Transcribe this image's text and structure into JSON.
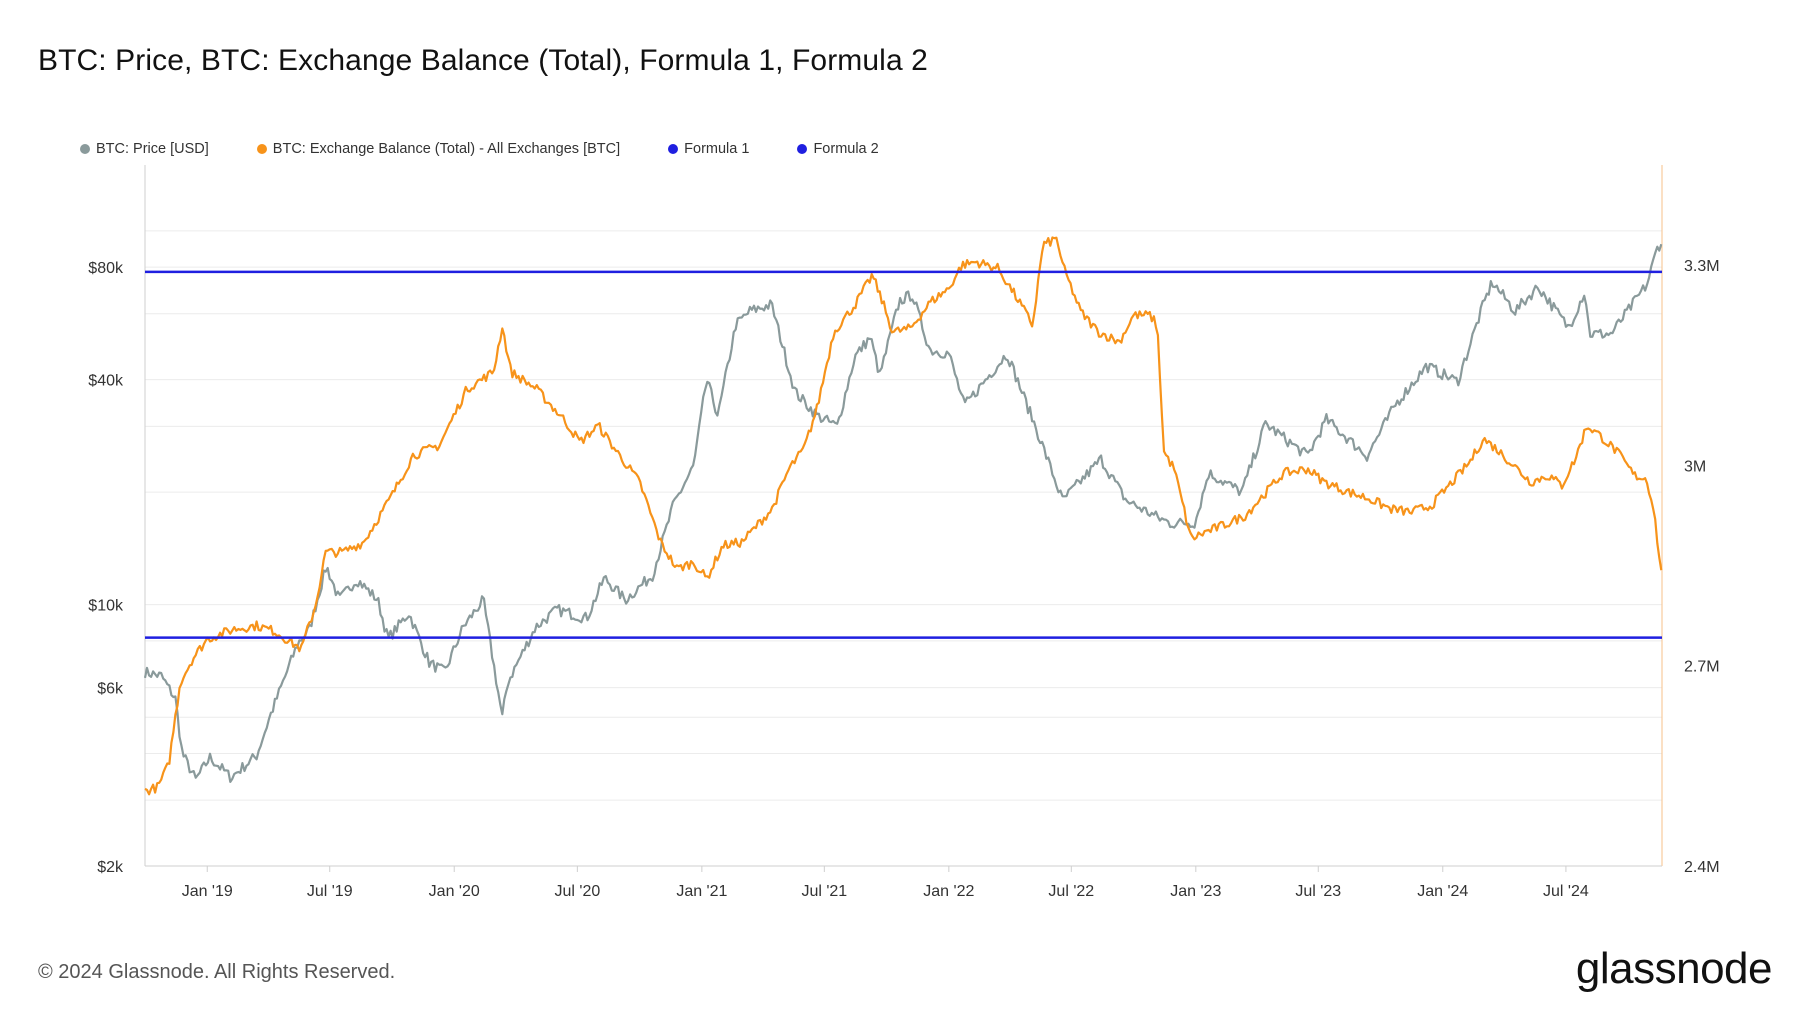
{
  "title": "BTC: Price, BTC: Exchange Balance (Total), Formula 1, Formula 2",
  "legend": [
    {
      "label": "BTC: Price [USD]",
      "color": "#8a9a9b"
    },
    {
      "label": "BTC: Exchange Balance (Total) - All Exchanges [BTC]",
      "color": "#f7931a"
    },
    {
      "label": "Formula 1",
      "color": "#1f1fe0"
    },
    {
      "label": "Formula 2",
      "color": "#1f1fe0"
    }
  ],
  "footer": "© 2024 Glassnode. All Rights Reserved.",
  "logo": "glassnode",
  "chart_data": {
    "type": "line",
    "title": "BTC: Price, BTC: Exchange Balance (Total), Formula 1, Formula 2",
    "x_range": [
      "2018-10-01",
      "2024-11-20"
    ],
    "x_ticks": [
      "Jan '19",
      "Jul '19",
      "Jan '20",
      "Jul '20",
      "Jan '21",
      "Jul '21",
      "Jan '22",
      "Jul '22",
      "Jan '23",
      "Jul '23",
      "Jan '24",
      "Jul '24"
    ],
    "y_left": {
      "scale": "log",
      "range": [
        2000,
        150000
      ],
      "ticks": [
        {
          "v": 2000,
          "label": "$2k"
        },
        {
          "v": 6000,
          "label": "$6k"
        },
        {
          "v": 10000,
          "label": "$10k"
        },
        {
          "v": 40000,
          "label": "$40k"
        },
        {
          "v": 80000,
          "label": "$80k"
        }
      ]
    },
    "y_right": {
      "scale": "linear",
      "range": [
        2400000,
        3450000
      ],
      "ticks": [
        {
          "v": 2400000,
          "label": "2.4M"
        },
        {
          "v": 2700000,
          "label": "2.7M"
        },
        {
          "v": 3000000,
          "label": "3M"
        },
        {
          "v": 3300000,
          "label": "3.3M"
        }
      ]
    },
    "grid": true,
    "legend_position": "top-left",
    "series": [
      {
        "name": "BTC: Price [USD]",
        "axis": "left",
        "color": "#8a9a9b",
        "points": [
          [
            "2018-10-01",
            6600
          ],
          [
            "2018-10-25",
            6450
          ],
          [
            "2018-11-15",
            5600
          ],
          [
            "2018-11-25",
            4000
          ],
          [
            "2018-12-15",
            3400
          ],
          [
            "2019-01-05",
            3900
          ],
          [
            "2019-02-05",
            3450
          ],
          [
            "2019-03-15",
            3950
          ],
          [
            "2019-04-05",
            5100
          ],
          [
            "2019-05-15",
            7900
          ],
          [
            "2019-06-01",
            8600
          ],
          [
            "2019-06-26",
            12700
          ],
          [
            "2019-07-15",
            10300
          ],
          [
            "2019-08-10",
            11700
          ],
          [
            "2019-09-10",
            10300
          ],
          [
            "2019-09-25",
            8100
          ],
          [
            "2019-10-26",
            9500
          ],
          [
            "2019-11-25",
            7000
          ],
          [
            "2019-12-18",
            6600
          ],
          [
            "2020-01-14",
            8700
          ],
          [
            "2020-02-13",
            10300
          ],
          [
            "2020-03-12",
            5000
          ],
          [
            "2020-03-20",
            6200
          ],
          [
            "2020-04-30",
            8700
          ],
          [
            "2020-06-01",
            9700
          ],
          [
            "2020-07-15",
            9200
          ],
          [
            "2020-08-10",
            11800
          ],
          [
            "2020-09-10",
            10300
          ],
          [
            "2020-10-20",
            12000
          ],
          [
            "2020-11-20",
            18500
          ],
          [
            "2020-12-20",
            23500
          ],
          [
            "2021-01-08",
            40000
          ],
          [
            "2021-01-25",
            32000
          ],
          [
            "2021-02-20",
            56000
          ],
          [
            "2021-03-13",
            61000
          ],
          [
            "2021-04-14",
            63500
          ],
          [
            "2021-05-19",
            37000
          ],
          [
            "2021-06-21",
            32000
          ],
          [
            "2021-07-20",
            30000
          ],
          [
            "2021-08-15",
            46000
          ],
          [
            "2021-09-07",
            52000
          ],
          [
            "2021-09-21",
            41000
          ],
          [
            "2021-10-20",
            65000
          ],
          [
            "2021-11-08",
            67500
          ],
          [
            "2021-12-04",
            48000
          ],
          [
            "2022-01-01",
            47000
          ],
          [
            "2022-01-24",
            34000
          ],
          [
            "2022-03-28",
            47000
          ],
          [
            "2022-05-12",
            29000
          ],
          [
            "2022-06-18",
            19000
          ],
          [
            "2022-08-14",
            24500
          ],
          [
            "2022-09-20",
            19000
          ],
          [
            "2022-11-09",
            17000
          ],
          [
            "2022-11-25",
            16500
          ],
          [
            "2022-12-31",
            16600
          ],
          [
            "2023-01-20",
            22500
          ],
          [
            "2023-03-10",
            20000
          ],
          [
            "2023-04-14",
            30500
          ],
          [
            "2023-06-15",
            25000
          ],
          [
            "2023-07-13",
            31300
          ],
          [
            "2023-09-11",
            25000
          ],
          [
            "2023-10-24",
            34500
          ],
          [
            "2023-12-08",
            43500
          ],
          [
            "2024-01-23",
            39500
          ],
          [
            "2024-02-28",
            62000
          ],
          [
            "2024-03-14",
            73000
          ],
          [
            "2024-04-17",
            61000
          ],
          [
            "2024-05-21",
            71000
          ],
          [
            "2024-07-05",
            55000
          ],
          [
            "2024-07-29",
            69000
          ],
          [
            "2024-08-05",
            53000
          ],
          [
            "2024-09-06",
            53000
          ],
          [
            "2024-10-29",
            72000
          ],
          [
            "2024-11-13",
            90000
          ],
          [
            "2024-11-20",
            94000
          ]
        ]
      },
      {
        "name": "BTC: Exchange Balance (Total) - All Exchanges [BTC]",
        "axis": "right",
        "color": "#f7931a",
        "points": [
          [
            "2018-10-01",
            2512000
          ],
          [
            "2018-10-20",
            2518000
          ],
          [
            "2018-11-05",
            2552000
          ],
          [
            "2018-11-22",
            2675000
          ],
          [
            "2018-12-10",
            2710000
          ],
          [
            "2019-01-01",
            2740000
          ],
          [
            "2019-02-10",
            2755000
          ],
          [
            "2019-03-15",
            2760000
          ],
          [
            "2019-04-10",
            2752000
          ],
          [
            "2019-05-20",
            2725000
          ],
          [
            "2019-06-10",
            2790000
          ],
          [
            "2019-06-25",
            2870000
          ],
          [
            "2019-07-20",
            2870000
          ],
          [
            "2019-08-20",
            2885000
          ],
          [
            "2019-10-01",
            2955000
          ],
          [
            "2019-11-01",
            3015000
          ],
          [
            "2019-12-10",
            3030000
          ],
          [
            "2020-01-20",
            3115000
          ],
          [
            "2020-02-28",
            3140000
          ],
          [
            "2020-03-12",
            3208000
          ],
          [
            "2020-03-25",
            3140000
          ],
          [
            "2020-05-01",
            3115000
          ],
          [
            "2020-06-10",
            3070000
          ],
          [
            "2020-07-05",
            3035000
          ],
          [
            "2020-08-01",
            3060000
          ],
          [
            "2020-08-25",
            3025000
          ],
          [
            "2020-10-01",
            2975000
          ],
          [
            "2020-11-01",
            2885000
          ],
          [
            "2020-11-25",
            2845000
          ],
          [
            "2020-12-20",
            2855000
          ],
          [
            "2021-01-08",
            2830000
          ],
          [
            "2021-02-01",
            2880000
          ],
          [
            "2021-03-01",
            2885000
          ],
          [
            "2021-04-15",
            2935000
          ],
          [
            "2021-05-10",
            2995000
          ],
          [
            "2021-06-01",
            3025000
          ],
          [
            "2021-06-20",
            3085000
          ],
          [
            "2021-07-15",
            3200000
          ],
          [
            "2021-08-15",
            3240000
          ],
          [
            "2021-09-10",
            3285000
          ],
          [
            "2021-09-25",
            3245000
          ],
          [
            "2021-10-10",
            3200000
          ],
          [
            "2021-11-05",
            3205000
          ],
          [
            "2021-12-05",
            3245000
          ],
          [
            "2022-01-01",
            3265000
          ],
          [
            "2022-01-20",
            3300000
          ],
          [
            "2022-02-10",
            3305000
          ],
          [
            "2022-03-15",
            3295000
          ],
          [
            "2022-04-15",
            3245000
          ],
          [
            "2022-05-05",
            3210000
          ],
          [
            "2022-05-20",
            3330000
          ],
          [
            "2022-06-10",
            3340000
          ],
          [
            "2022-06-18",
            3300000
          ],
          [
            "2022-07-15",
            3230000
          ],
          [
            "2022-08-10",
            3200000
          ],
          [
            "2022-09-10",
            3185000
          ],
          [
            "2022-10-01",
            3225000
          ],
          [
            "2022-10-25",
            3225000
          ],
          [
            "2022-11-05",
            3210000
          ],
          [
            "2022-11-15",
            3020000
          ],
          [
            "2022-11-30",
            2995000
          ],
          [
            "2022-12-25",
            2890000
          ],
          [
            "2023-01-15",
            2900000
          ],
          [
            "2023-02-10",
            2910000
          ],
          [
            "2023-03-15",
            2925000
          ],
          [
            "2023-04-15",
            2960000
          ],
          [
            "2023-05-10",
            2988000
          ],
          [
            "2023-06-15",
            2995000
          ],
          [
            "2023-07-10",
            2975000
          ],
          [
            "2023-08-15",
            2960000
          ],
          [
            "2023-09-15",
            2950000
          ],
          [
            "2023-10-15",
            2935000
          ],
          [
            "2023-11-15",
            2930000
          ],
          [
            "2023-12-15",
            2940000
          ],
          [
            "2024-01-15",
            2975000
          ],
          [
            "2024-02-10",
            3005000
          ],
          [
            "2024-03-01",
            3040000
          ],
          [
            "2024-03-20",
            3025000
          ],
          [
            "2024-04-15",
            3000000
          ],
          [
            "2024-05-10",
            2975000
          ],
          [
            "2024-06-05",
            2985000
          ],
          [
            "2024-06-25",
            2970000
          ],
          [
            "2024-07-15",
            3010000
          ],
          [
            "2024-08-01",
            3060000
          ],
          [
            "2024-08-20",
            3045000
          ],
          [
            "2024-09-15",
            3020000
          ],
          [
            "2024-10-10",
            2985000
          ],
          [
            "2024-10-28",
            2980000
          ],
          [
            "2024-11-08",
            2935000
          ],
          [
            "2024-11-15",
            2870000
          ],
          [
            "2024-11-20",
            2830000
          ]
        ]
      },
      {
        "name": "Formula 1",
        "axis": "right",
        "color": "#1f1fe0",
        "value": 3290000
      },
      {
        "name": "Formula 2",
        "axis": "right",
        "color": "#1f1fe0",
        "value": 2742000
      }
    ]
  }
}
